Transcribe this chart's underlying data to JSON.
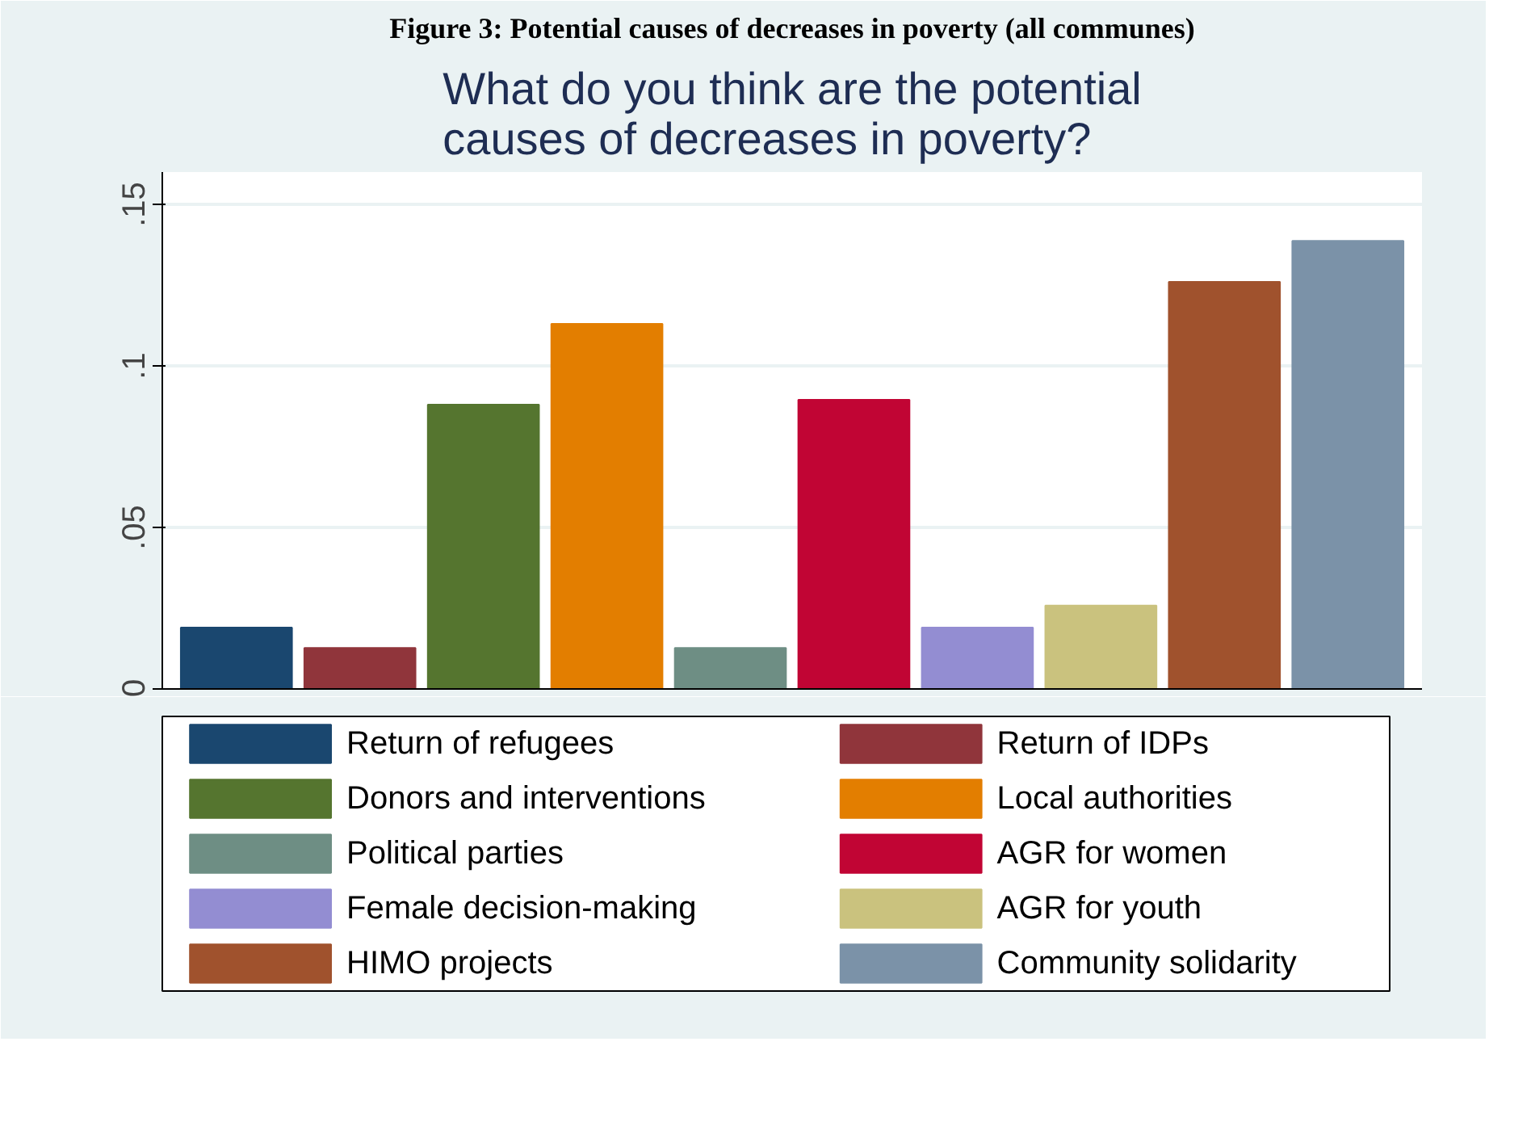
{
  "chart_data": {
    "type": "bar",
    "title": "What do you think are the potential\ncauses of decreases in poverty?",
    "annotations": [
      "Figure 3: Potential causes of decreases in poverty (all communes)"
    ],
    "categories": [
      null,
      null,
      null,
      null,
      null,
      null,
      null,
      null,
      null,
      null
    ],
    "series": [
      {
        "name": "Return of refugees",
        "color": "#1a476f",
        "values": [
          0.019,
          null,
          null,
          null,
          null,
          null,
          null,
          null,
          null,
          null
        ]
      },
      {
        "name": "Return of IDPs",
        "color": "#90353b",
        "values": [
          null,
          0.0127,
          null,
          null,
          null,
          null,
          null,
          null,
          null,
          null
        ]
      },
      {
        "name": "Donors and interventions",
        "color": "#55752f",
        "values": [
          null,
          null,
          0.088,
          null,
          null,
          null,
          null,
          null,
          null,
          null
        ]
      },
      {
        "name": "Local authorities",
        "color": "#e37e00",
        "values": [
          null,
          null,
          null,
          0.113,
          null,
          null,
          null,
          null,
          null,
          null
        ]
      },
      {
        "name": "Political parties",
        "color": "#6e8e84",
        "values": [
          null,
          null,
          null,
          null,
          0.0127,
          null,
          null,
          null,
          null,
          null
        ]
      },
      {
        "name": "AGR for women",
        "color": "#c10534",
        "values": [
          null,
          null,
          null,
          null,
          null,
          0.0895,
          null,
          null,
          null,
          null
        ]
      },
      {
        "name": "Female decision-making",
        "color": "#938dd2",
        "values": [
          null,
          null,
          null,
          null,
          null,
          null,
          0.019,
          null,
          null,
          null
        ]
      },
      {
        "name": "AGR for youth",
        "color": "#cac27e",
        "values": [
          null,
          null,
          null,
          null,
          null,
          null,
          null,
          0.0258,
          null,
          null
        ]
      },
      {
        "name": "HIMO projects",
        "color": "#a0522d",
        "values": [
          null,
          null,
          null,
          null,
          null,
          null,
          null,
          null,
          0.126,
          null
        ]
      },
      {
        "name": "Community solidarity",
        "color": "#7b92a8",
        "values": [
          null,
          null,
          null,
          null,
          null,
          null,
          null,
          null,
          null,
          0.1387
        ]
      }
    ],
    "ylim": [
      0,
      0.16
    ],
    "yticks": [
      {
        "value": 0,
        "label": "0"
      },
      {
        "value": 0.05,
        "label": ".05"
      },
      {
        "value": 0.1,
        "label": ".1"
      },
      {
        "value": 0.15,
        "label": ".15"
      }
    ],
    "grid": "y",
    "legend": "bottom"
  }
}
